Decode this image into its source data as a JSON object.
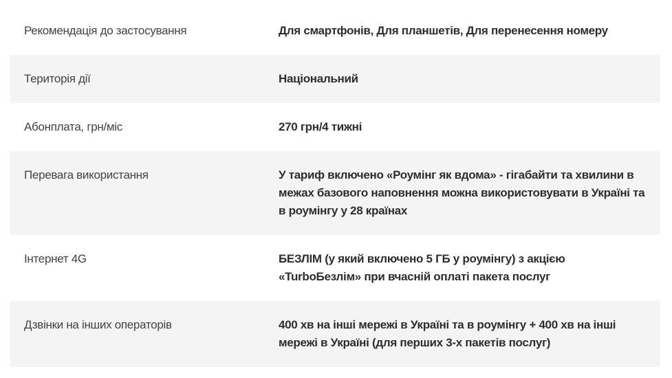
{
  "colors": {
    "page_background": "#ffffff",
    "row_alt_background": "#f4f4f4",
    "label_text": "#3f4345",
    "value_text": "#2b2d2e"
  },
  "table": {
    "rows": [
      {
        "label": "Рекомендація до застосування",
        "value": "Для смартфонів, Для планшетів, Для перенесення номеру"
      },
      {
        "label": "Територія дії",
        "value": "Національний"
      },
      {
        "label": "Абонплата, грн/міс",
        "value": "270 грн/4 тижні"
      },
      {
        "label": "Перевага використання",
        "value": "У тариф включено «Роумінг як вдома» - гігабайти та хвилини в межах базового наповнення можна використовувати в Україні та в роумінгу у 28 країнах"
      },
      {
        "label": "Інтернет 4G",
        "value": "БЕЗЛІМ (у який включено 5 ГБ у роумінгу) з акцією «TurboБезлім» при вчасній оплаті пакета послуг"
      },
      {
        "label": "Дзвінки на інших операторів",
        "value": "400 хв на інші мережі в Україні та в роумінгу + 400 хв на інші мережі в Україні (для перших 3-х пакетів послуг)"
      }
    ]
  }
}
